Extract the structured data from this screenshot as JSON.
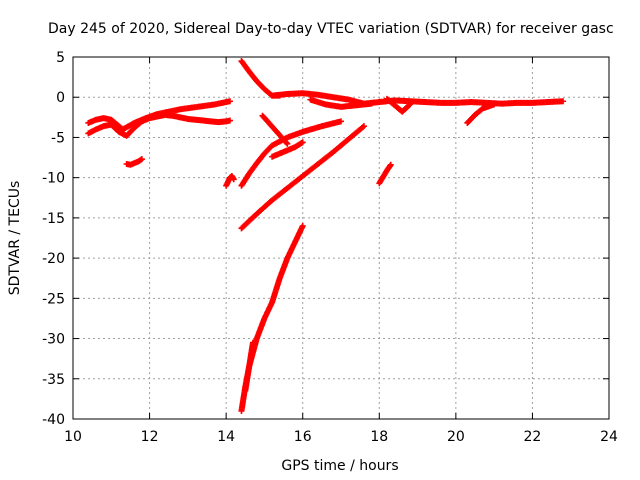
{
  "chart_data": {
    "type": "scatter",
    "title": "Day 245 of 2020, Sidereal Day-to-day VTEC variation (SDTVAR) for receiver gasc",
    "xlabel": "GPS time / hours",
    "ylabel": "SDTVAR / TECUs",
    "xlim": [
      10,
      24
    ],
    "ylim": [
      -40,
      5
    ],
    "xticks": [
      10,
      12,
      14,
      16,
      18,
      20,
      22,
      24
    ],
    "yticks": [
      5,
      0,
      -5,
      -10,
      -15,
      -20,
      -25,
      -30,
      -35,
      -40
    ],
    "grid": true,
    "marker": "+",
    "color": "#ff0000",
    "series": [
      {
        "x": [
          10.4,
          10.6,
          10.8,
          11.0,
          11.2,
          11.4,
          11.6,
          11.8,
          12.0,
          12.2,
          12.4,
          12.6,
          12.8,
          13.0,
          13.2,
          13.4,
          13.6,
          13.8,
          14.0,
          14.1
        ],
        "y": [
          -4.5,
          -4.0,
          -3.6,
          -3.4,
          -4.3,
          -4.8,
          -3.8,
          -3.0,
          -2.6,
          -2.4,
          -2.2,
          -2.3,
          -2.5,
          -2.7,
          -2.8,
          -2.9,
          -3.0,
          -3.1,
          -3.0,
          -2.9
        ]
      },
      {
        "x": [
          10.4,
          10.6,
          10.8,
          11.0,
          11.3,
          11.6,
          11.9,
          12.2,
          12.5,
          12.8,
          13.1,
          13.4,
          13.7,
          14.0,
          14.1
        ],
        "y": [
          -3.2,
          -2.8,
          -2.6,
          -2.8,
          -4.0,
          -3.2,
          -2.6,
          -2.1,
          -1.8,
          -1.5,
          -1.3,
          -1.1,
          -0.9,
          -0.6,
          -0.5
        ]
      },
      {
        "x": [
          11.4,
          11.5,
          11.6,
          11.7,
          11.8
        ],
        "y": [
          -8.3,
          -8.4,
          -8.2,
          -8.0,
          -7.7
        ]
      },
      {
        "x": [
          14.0,
          14.05,
          14.1,
          14.15,
          14.2
        ],
        "y": [
          -11.0,
          -10.5,
          -10.0,
          -9.8,
          -10.2
        ]
      },
      {
        "x": [
          14.4,
          14.6,
          14.8,
          15.0,
          15.2,
          15.4
        ],
        "y": [
          4.5,
          3.2,
          2.0,
          1.0,
          0.2,
          0.2
        ]
      },
      {
        "x": [
          15.2,
          15.6,
          16.0,
          16.4,
          16.8,
          17.2,
          17.6,
          18.0,
          18.4,
          18.8,
          19.2,
          19.6,
          20.0,
          20.4,
          20.8,
          21.2,
          21.6,
          22.0,
          22.4,
          22.8
        ],
        "y": [
          0.2,
          0.4,
          0.5,
          0.3,
          0.0,
          -0.3,
          -0.8,
          -0.6,
          -0.4,
          -0.5,
          -0.6,
          -0.7,
          -0.7,
          -0.6,
          -0.7,
          -0.8,
          -0.7,
          -0.7,
          -0.6,
          -0.5
        ]
      },
      {
        "x": [
          16.2,
          16.6,
          17.0,
          17.4,
          17.8
        ],
        "y": [
          -0.3,
          -0.9,
          -1.2,
          -1.0,
          -0.8
        ]
      },
      {
        "x": [
          18.2,
          18.4,
          18.6,
          18.8
        ],
        "y": [
          -0.2,
          -1.0,
          -1.8,
          -0.9
        ]
      },
      {
        "x": [
          20.3,
          20.5,
          20.7,
          21.0
        ],
        "y": [
          -3.2,
          -2.2,
          -1.4,
          -0.9
        ]
      },
      {
        "x": [
          14.4,
          14.6,
          14.8,
          15.0,
          15.2,
          15.6,
          16.0,
          16.5,
          17.0
        ],
        "y": [
          -11.0,
          -9.5,
          -8.2,
          -7.0,
          -6.0,
          -5.0,
          -4.3,
          -3.6,
          -3.0
        ]
      },
      {
        "x": [
          14.4,
          14.8,
          15.2,
          15.6,
          16.0,
          16.4,
          16.8,
          17.2,
          17.6
        ],
        "y": [
          -16.3,
          -14.5,
          -12.8,
          -11.3,
          -9.8,
          -8.3,
          -6.8,
          -5.2,
          -3.6
        ]
      },
      {
        "x": [
          15.2,
          15.5,
          15.8,
          16.0
        ],
        "y": [
          -7.4,
          -6.8,
          -6.2,
          -5.6
        ]
      },
      {
        "x": [
          18.0,
          18.1,
          18.2,
          18.3
        ],
        "y": [
          -10.7,
          -9.9,
          -9.1,
          -8.4
        ]
      },
      {
        "x": [
          14.4,
          14.5,
          14.6,
          14.8,
          15.0,
          15.2,
          15.4,
          15.6,
          15.8,
          16.0
        ],
        "y": [
          -39.0,
          -36.0,
          -33.5,
          -30.0,
          -27.5,
          -25.5,
          -22.5,
          -20.0,
          -18.0,
          -16.0
        ]
      },
      {
        "x": [
          14.5,
          14.6,
          14.7
        ],
        "y": [
          -36.5,
          -33.5,
          -30.5
        ]
      },
      {
        "x": [
          14.95,
          15.6
        ],
        "y": [
          -2.3,
          -5.8
        ]
      }
    ]
  }
}
